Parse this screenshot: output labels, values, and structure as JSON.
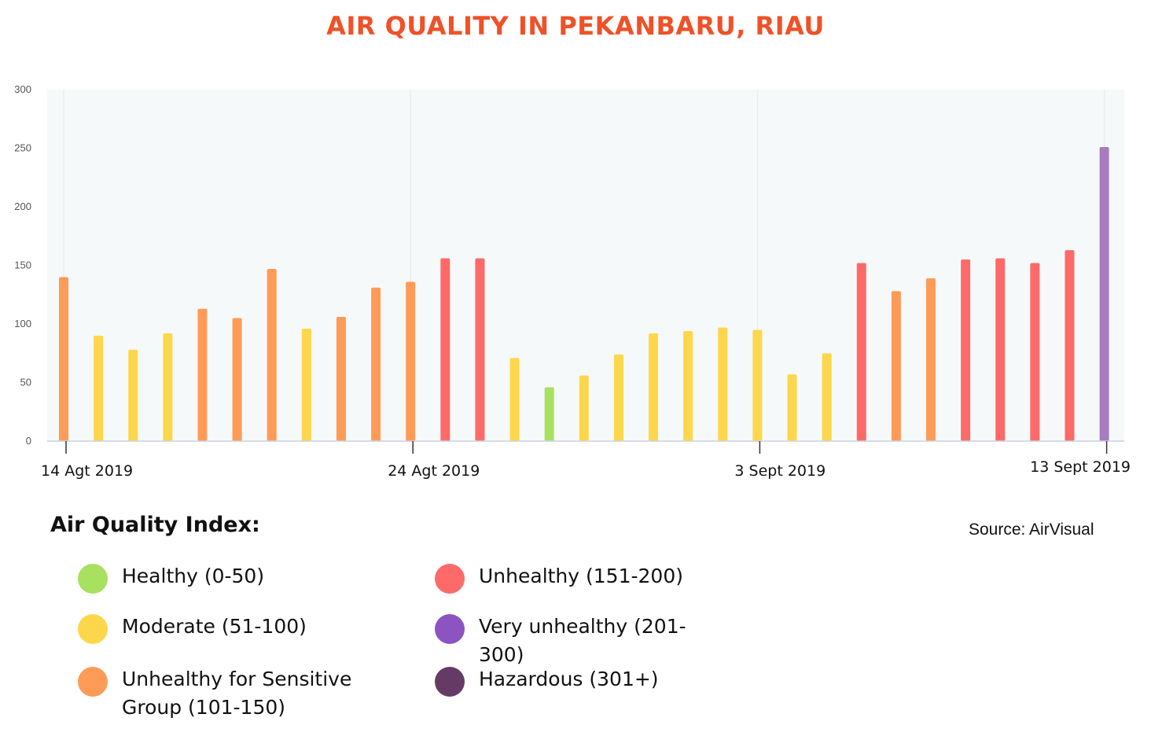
{
  "title": "AIR QUALITY IN PEKANBARU, RIAU",
  "source": "Source: AirVisual",
  "legend_title": "Air Quality Index:",
  "legend": [
    {
      "label": "Healthy (0-50)",
      "color": "#a8e05f"
    },
    {
      "label": "Moderate (51-100)",
      "color": "#fdd74b"
    },
    {
      "label": "Unhealthy for Sensitive Group (101-150)",
      "color": "#fe9b57"
    },
    {
      "label": "Unhealthy (151-200)",
      "color": "#fe6a69"
    },
    {
      "label": "Very unhealthy (201-300)",
      "color": "#8c54c0"
    },
    {
      "label": "Hazardous (301+)",
      "color": "#653b66"
    }
  ],
  "chart_data": {
    "type": "bar",
    "title": "AIR QUALITY IN PEKANBARU, RIAU",
    "xlabel": "",
    "ylabel": "",
    "ylim": [
      0,
      300
    ],
    "yticks": [
      0,
      50,
      100,
      150,
      200,
      250,
      300
    ],
    "x_tick_labels": [
      {
        "label": "14 Agt 2019",
        "index": 0
      },
      {
        "label": "24 Agt 2019",
        "index": 10
      },
      {
        "label": "3 Sept 2019",
        "index": 20
      },
      {
        "label": "13 Sept 2019",
        "index": 30
      }
    ],
    "values": [
      140,
      90,
      78,
      92,
      113,
      105,
      147,
      96,
      106,
      131,
      136,
      156,
      156,
      71,
      46,
      56,
      74,
      92,
      94,
      97,
      95,
      57,
      75,
      152,
      128,
      139,
      155,
      156,
      152,
      163,
      251
    ],
    "colors": [
      "#fe9b57",
      "#fdd74b",
      "#fdd74b",
      "#fdd74b",
      "#fe9b57",
      "#fe9b57",
      "#fe9b57",
      "#fdd74b",
      "#fe9b57",
      "#fe9b57",
      "#fe9b57",
      "#fe6a69",
      "#fe6a69",
      "#fdd74b",
      "#a8e05f",
      "#fdd74b",
      "#fdd74b",
      "#fdd74b",
      "#fdd74b",
      "#fdd74b",
      "#fdd74b",
      "#fdd74b",
      "#fdd74b",
      "#fe6a69",
      "#fe9b57",
      "#fe9b57",
      "#fe6a69",
      "#fe6a69",
      "#fe6a69",
      "#fe6a69",
      "#a87cc0"
    ],
    "grid": "vertical",
    "legend_position": "bottom-left"
  }
}
